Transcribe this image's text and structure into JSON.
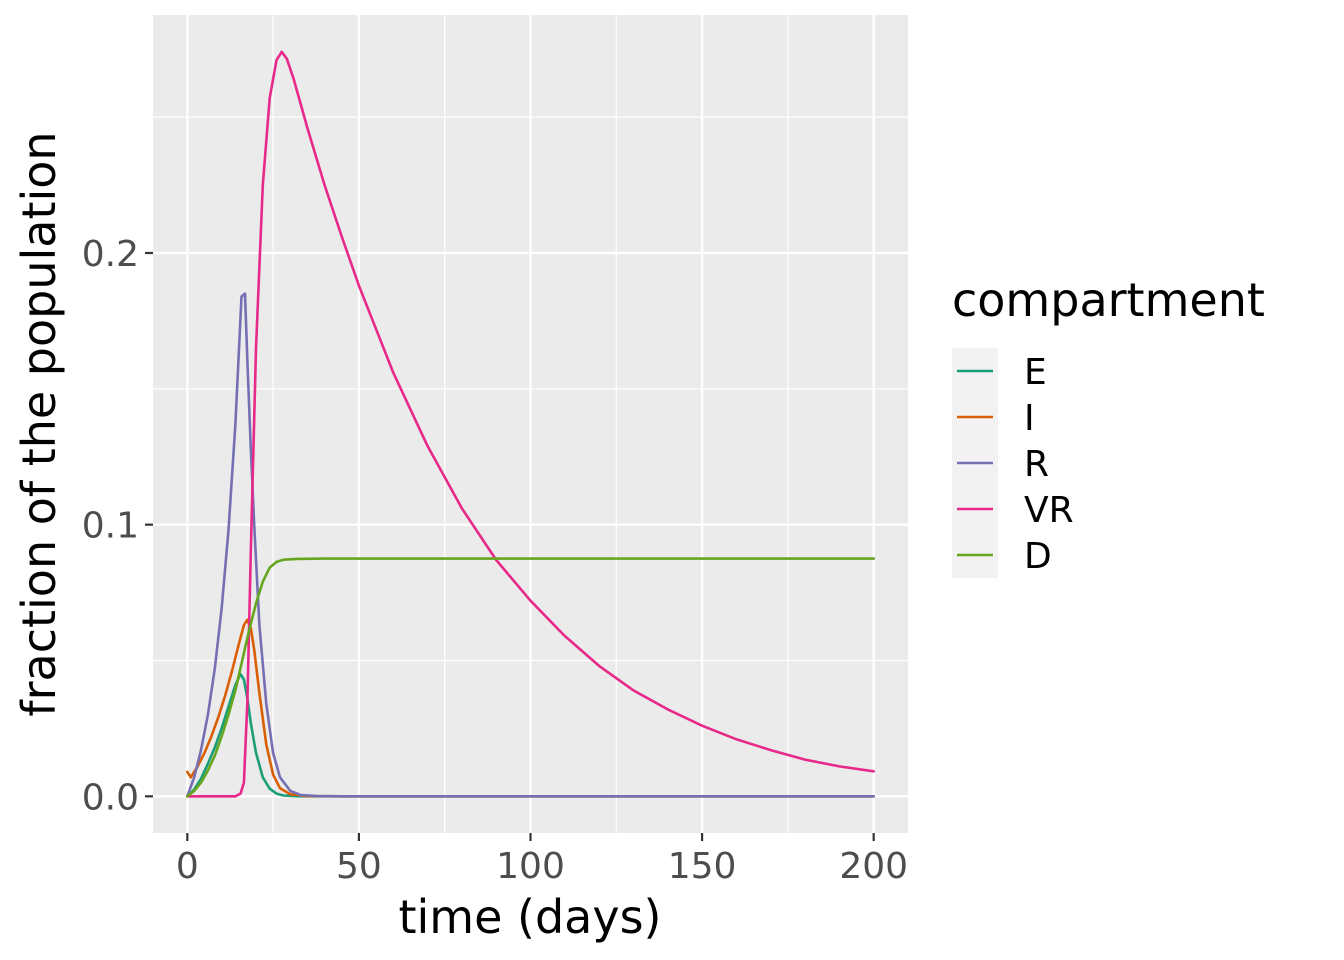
{
  "chart_data": {
    "type": "line",
    "xlabel": "time (days)",
    "ylabel": "fraction of the population",
    "xlim": [
      -10,
      210
    ],
    "ylim": [
      -0.0135,
      0.2876
    ],
    "x_ticks": [
      0,
      50,
      100,
      150,
      200
    ],
    "x_tick_labels": [
      "0",
      "50",
      "100",
      "150",
      "200"
    ],
    "y_ticks": [
      0.0,
      0.1,
      0.2
    ],
    "y_tick_labels": [
      "0.0",
      "0.1",
      "0.2"
    ],
    "grid": true,
    "legend": {
      "title": "compartment",
      "position": "right"
    },
    "series": [
      {
        "name": "E",
        "color": "#1b9e77",
        "points": [
          [
            0,
            0
          ],
          [
            2,
            0.0025
          ],
          [
            4,
            0.0065
          ],
          [
            6,
            0.012
          ],
          [
            8,
            0.018
          ],
          [
            10,
            0.025
          ],
          [
            12,
            0.033
          ],
          [
            14,
            0.041
          ],
          [
            15.5,
            0.045
          ],
          [
            16.5,
            0.043
          ],
          [
            17.5,
            0.036
          ],
          [
            18.5,
            0.027
          ],
          [
            20,
            0.016
          ],
          [
            22,
            0.007
          ],
          [
            24,
            0.0028
          ],
          [
            26,
            0.001
          ],
          [
            28,
            0.0003
          ],
          [
            32,
            5e-05
          ],
          [
            40,
            0
          ],
          [
            60,
            0
          ],
          [
            100,
            0
          ],
          [
            150,
            0
          ],
          [
            200,
            0
          ]
        ]
      },
      {
        "name": "I",
        "color": "#d95f02",
        "points": [
          [
            0,
            0.009
          ],
          [
            1,
            0.007
          ],
          [
            3,
            0.011
          ],
          [
            5,
            0.016
          ],
          [
            7,
            0.022
          ],
          [
            9,
            0.029
          ],
          [
            11,
            0.037
          ],
          [
            13,
            0.046
          ],
          [
            15,
            0.056
          ],
          [
            16.5,
            0.063
          ],
          [
            17.5,
            0.065
          ],
          [
            18.5,
            0.062
          ],
          [
            19.5,
            0.054
          ],
          [
            21,
            0.038
          ],
          [
            23,
            0.019
          ],
          [
            25,
            0.008
          ],
          [
            27,
            0.003
          ],
          [
            30,
            0.0008
          ],
          [
            35,
            0.0001
          ],
          [
            45,
            0
          ],
          [
            100,
            0
          ],
          [
            150,
            0
          ],
          [
            200,
            0
          ]
        ]
      },
      {
        "name": "R",
        "color": "#7570b3",
        "points": [
          [
            0,
            0
          ],
          [
            2,
            0.007
          ],
          [
            4,
            0.017
          ],
          [
            6,
            0.03
          ],
          [
            8,
            0.047
          ],
          [
            10,
            0.069
          ],
          [
            12,
            0.098
          ],
          [
            14,
            0.137
          ],
          [
            15.8,
            0.184
          ],
          [
            16.8,
            0.185
          ],
          [
            17.5,
            0.16
          ],
          [
            18.5,
            0.128
          ],
          [
            19.5,
            0.1
          ],
          [
            21,
            0.063
          ],
          [
            23,
            0.034
          ],
          [
            25,
            0.016
          ],
          [
            27,
            0.007
          ],
          [
            30,
            0.002
          ],
          [
            33,
            0.0005
          ],
          [
            38,
            0.0001
          ],
          [
            45,
            0
          ],
          [
            100,
            0
          ],
          [
            150,
            0
          ],
          [
            200,
            0
          ]
        ]
      },
      {
        "name": "VR",
        "color": "#e7298a",
        "points": [
          [
            0,
            0
          ],
          [
            14,
            0
          ],
          [
            15.5,
            0.001
          ],
          [
            16.5,
            0.005
          ],
          [
            17.5,
            0.035
          ],
          [
            18.5,
            0.09
          ],
          [
            20,
            0.165
          ],
          [
            22,
            0.225
          ],
          [
            24,
            0.257
          ],
          [
            26,
            0.271
          ],
          [
            27.5,
            0.274
          ],
          [
            29,
            0.2715
          ],
          [
            31,
            0.264
          ],
          [
            35,
            0.246
          ],
          [
            40,
            0.225
          ],
          [
            45,
            0.206
          ],
          [
            50,
            0.188
          ],
          [
            60,
            0.156
          ],
          [
            70,
            0.129
          ],
          [
            80,
            0.106
          ],
          [
            90,
            0.087
          ],
          [
            100,
            0.072
          ],
          [
            110,
            0.059
          ],
          [
            120,
            0.048
          ],
          [
            130,
            0.039
          ],
          [
            140,
            0.032
          ],
          [
            150,
            0.026
          ],
          [
            160,
            0.021
          ],
          [
            170,
            0.017
          ],
          [
            180,
            0.0135
          ],
          [
            190,
            0.011
          ],
          [
            200,
            0.0092
          ]
        ]
      },
      {
        "name": "D",
        "color": "#66a61e",
        "points": [
          [
            0,
            0
          ],
          [
            2,
            0.002
          ],
          [
            4,
            0.005
          ],
          [
            6,
            0.0095
          ],
          [
            8,
            0.015
          ],
          [
            10,
            0.022
          ],
          [
            12,
            0.03
          ],
          [
            14,
            0.039
          ],
          [
            16,
            0.05
          ],
          [
            18,
            0.061
          ],
          [
            20,
            0.071
          ],
          [
            22,
            0.079
          ],
          [
            24,
            0.0842
          ],
          [
            26,
            0.0863
          ],
          [
            28,
            0.0871
          ],
          [
            32,
            0.0874
          ],
          [
            40,
            0.0875
          ],
          [
            60,
            0.0875
          ],
          [
            100,
            0.0875
          ],
          [
            150,
            0.0875
          ],
          [
            200,
            0.0875
          ]
        ]
      }
    ]
  }
}
